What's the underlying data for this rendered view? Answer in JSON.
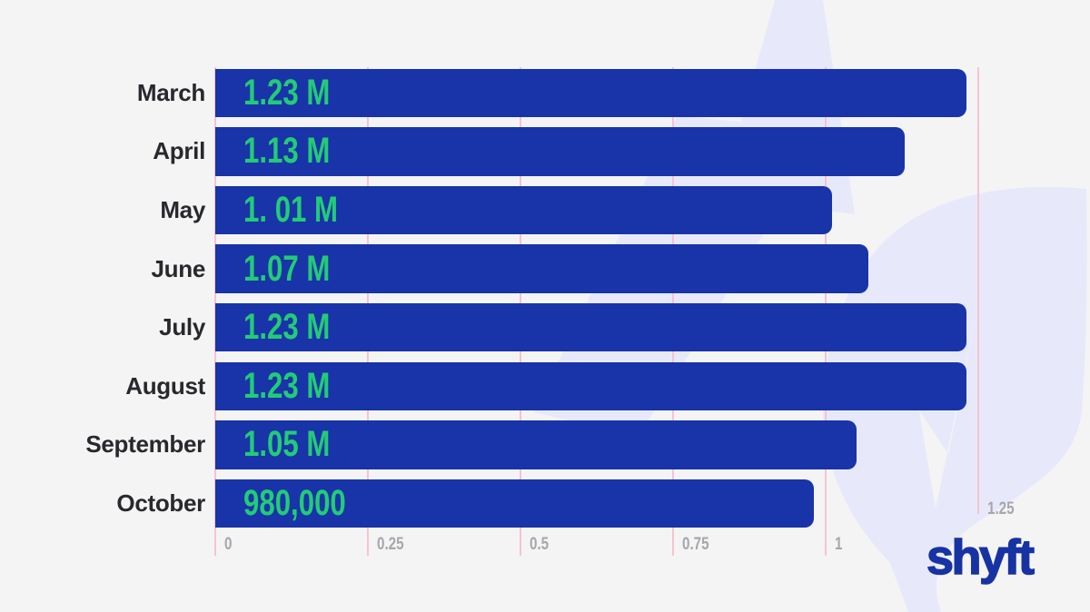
{
  "chart_data": {
    "type": "bar",
    "orientation": "horizontal",
    "categories": [
      "March",
      "April",
      "May",
      "June",
      "July",
      "August",
      "September",
      "October"
    ],
    "values": [
      1.23,
      1.13,
      1.01,
      1.07,
      1.23,
      1.23,
      1.05,
      0.98
    ],
    "value_labels": [
      "1.23 M",
      "1.13 M",
      "1. 01 M",
      "1.07 M",
      "1.23 M",
      "1.23 M",
      "1.05 M",
      "980,000"
    ],
    "xlim": [
      0,
      1.25
    ],
    "x_ticks": [
      0,
      0.25,
      0.5,
      0.75,
      1,
      1.25
    ],
    "x_tick_labels": [
      "0",
      "0.25",
      "0.5",
      "0.75",
      "1",
      "1.25"
    ],
    "grid": true,
    "legend_position": "none",
    "title": ""
  },
  "branding": {
    "logo_text": "shyft"
  },
  "colors": {
    "background": "#f4f4f5",
    "bar": "#1834a8",
    "value_text": "#23cb77",
    "gridline": "#f6c3d0",
    "category_text": "#28282d",
    "tick_text": "#a6a6ac",
    "logo": "#1733a3",
    "decoration": "#e7e9fb"
  }
}
